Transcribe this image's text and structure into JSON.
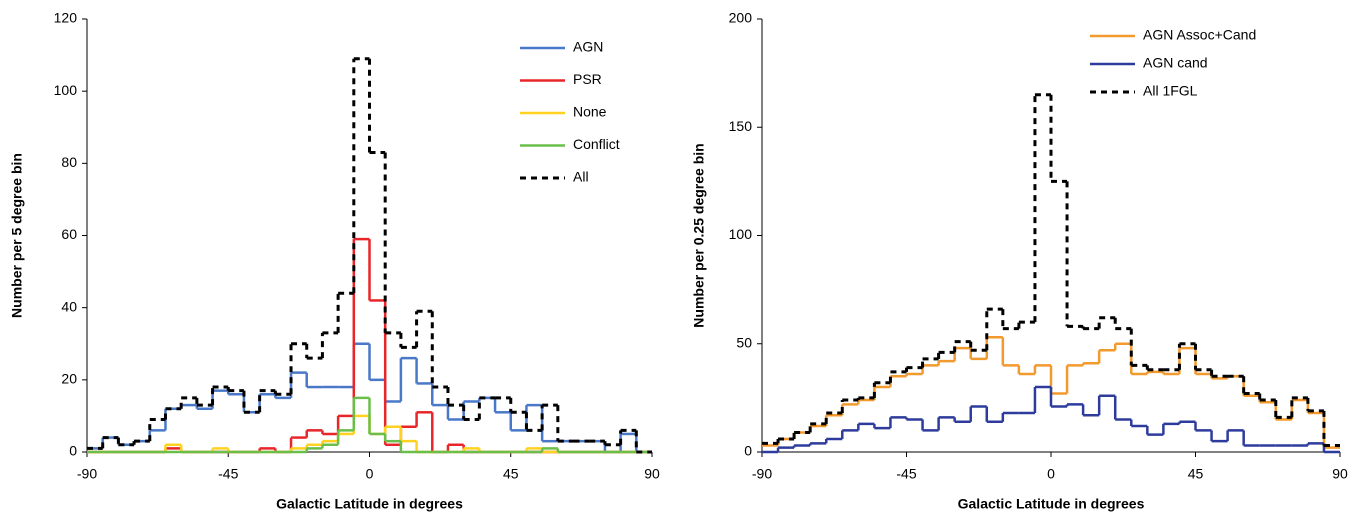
{
  "chart_data": [
    {
      "type": "histogram",
      "x_label": "Galactic Latitude in degrees",
      "y_label": "Number per 5 degree bin",
      "bins": [
        -90,
        -85,
        -80,
        -75,
        -70,
        -65,
        -60,
        -55,
        -50,
        -45,
        -40,
        -35,
        -30,
        -25,
        -20,
        -15,
        -10,
        -5,
        0,
        5,
        10,
        15,
        20,
        25,
        30,
        35,
        40,
        45,
        50,
        55,
        60,
        65,
        70,
        75,
        80,
        85,
        90
      ],
      "xlim": [
        -90,
        90
      ],
      "xticks": [
        -90,
        -45,
        0,
        45,
        90
      ],
      "ylim": [
        0,
        120
      ],
      "yticks": [
        0,
        20,
        40,
        60,
        80,
        100,
        120
      ],
      "legend": "upper right",
      "series": [
        {
          "name": "AGN",
          "color": "#4a78c8",
          "values": [
            1,
            4,
            2,
            3,
            6,
            12,
            13,
            12,
            17,
            16,
            11,
            16,
            15,
            22,
            18,
            18,
            18,
            30,
            20,
            14,
            26,
            19,
            13,
            9,
            14,
            15,
            11,
            6,
            13,
            3,
            3,
            3,
            3,
            0,
            5,
            0
          ]
        },
        {
          "name": "PSR",
          "color": "#e8262a",
          "values": [
            0,
            0,
            0,
            0,
            0,
            1,
            0,
            0,
            0,
            0,
            0,
            1,
            0,
            4,
            6,
            5,
            10,
            59,
            42,
            2,
            7,
            11,
            0,
            2,
            0,
            0,
            0,
            0,
            0,
            0,
            0,
            0,
            0,
            0,
            0,
            0
          ]
        },
        {
          "name": "None",
          "color": "#ffd21f",
          "values": [
            0,
            0,
            0,
            0,
            0,
            2,
            0,
            0,
            1,
            0,
            0,
            0,
            0,
            1,
            2,
            3,
            5,
            10,
            5,
            7,
            3,
            0,
            0,
            0,
            1,
            0,
            0,
            0,
            1,
            0,
            0,
            0,
            0,
            0,
            0,
            0
          ]
        },
        {
          "name": "Conflict",
          "color": "#6abf4b",
          "values": [
            0,
            0,
            0,
            0,
            0,
            0,
            0,
            0,
            0,
            0,
            0,
            0,
            0,
            0,
            1,
            2,
            6,
            15,
            5,
            3,
            0,
            0,
            0,
            0,
            0,
            0,
            0,
            0,
            0,
            1,
            0,
            0,
            0,
            0,
            0,
            0
          ]
        },
        {
          "name": "All",
          "color": "#000000",
          "dashed": true,
          "values": [
            1,
            4,
            2,
            3,
            9,
            12,
            15,
            13,
            18,
            17,
            11,
            17,
            16,
            30,
            26,
            33,
            44,
            109,
            83,
            33,
            29,
            39,
            18,
            13,
            9,
            15,
            15,
            11,
            6,
            13,
            3,
            3,
            3,
            2,
            6,
            0
          ]
        }
      ]
    },
    {
      "type": "histogram",
      "x_label": "Galactic Latitude in degrees",
      "y_label": "Number per 0.25 degree bin",
      "bins": [
        -90,
        -85,
        -80,
        -75,
        -70,
        -65,
        -60,
        -55,
        -50,
        -45,
        -40,
        -35,
        -30,
        -25,
        -20,
        -15,
        -10,
        -5,
        0,
        5,
        10,
        15,
        20,
        25,
        30,
        35,
        40,
        45,
        50,
        55,
        60,
        65,
        70,
        75,
        80,
        85,
        90
      ],
      "xlim": [
        -90,
        90
      ],
      "xticks": [
        -90,
        -45,
        0,
        45,
        90
      ],
      "ylim": [
        0,
        200
      ],
      "yticks": [
        0,
        50,
        100,
        150,
        200
      ],
      "legend": "upper right",
      "series": [
        {
          "name": "AGN Assoc+Cand",
          "color": "#f39a2e",
          "values": [
            3,
            6,
            9,
            12,
            17,
            22,
            24,
            30,
            35,
            36,
            40,
            42,
            48,
            43,
            53,
            40,
            36,
            40,
            27,
            40,
            41,
            47,
            50,
            36,
            37,
            36,
            48,
            36,
            34,
            35,
            26,
            23,
            15,
            24,
            18,
            2
          ]
        },
        {
          "name": "AGN cand",
          "color": "#2d3c9c",
          "values": [
            0,
            2,
            3,
            4,
            6,
            10,
            13,
            11,
            16,
            15,
            10,
            16,
            14,
            21,
            14,
            18,
            18,
            30,
            21,
            22,
            17,
            26,
            15,
            12,
            8,
            13,
            14,
            10,
            5,
            10,
            3,
            3,
            3,
            3,
            4,
            0
          ]
        },
        {
          "name": "All 1FGL",
          "color": "#000000",
          "dashed": true,
          "values": [
            4,
            6,
            9,
            13,
            18,
            24,
            25,
            32,
            37,
            39,
            43,
            46,
            51,
            47,
            66,
            57,
            60,
            165,
            125,
            58,
            57,
            62,
            57,
            40,
            38,
            38,
            50,
            38,
            35,
            35,
            27,
            24,
            16,
            25,
            19,
            3
          ]
        }
      ]
    }
  ]
}
